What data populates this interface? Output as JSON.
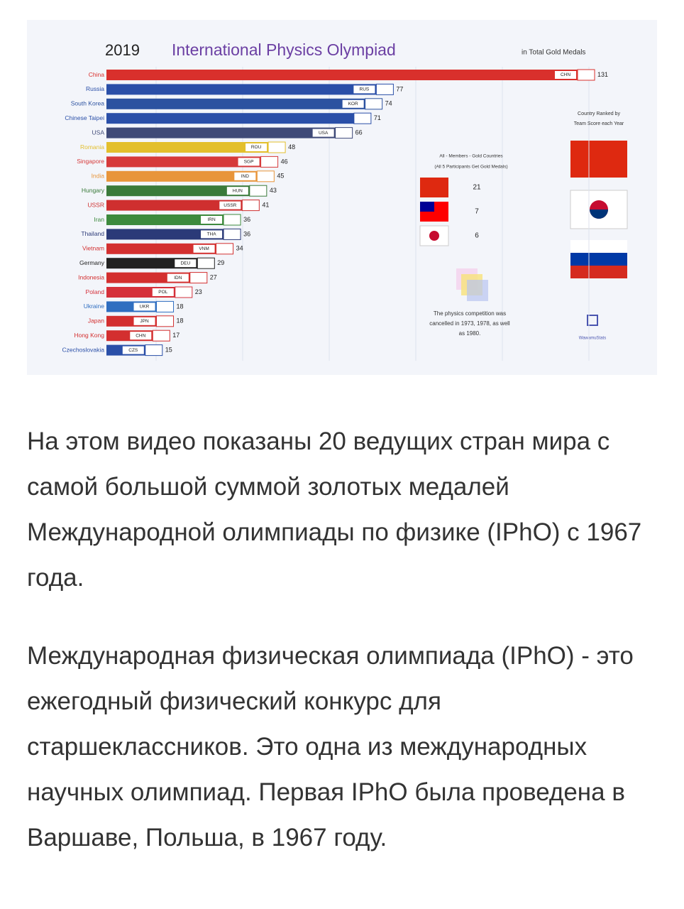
{
  "chart_data": {
    "type": "bar",
    "orientation": "horizontal",
    "year": "2019",
    "title": "International Physics Olympiad",
    "subtitle": "in Total Gold Medals",
    "categories": [
      "China",
      "Russia",
      "South Korea",
      "Chinese Taipei",
      "USA",
      "Romania",
      "Singapore",
      "India",
      "Hungary",
      "USSR",
      "Iran",
      "Thailand",
      "Vietnam",
      "Germany",
      "Indonesia",
      "Poland",
      "Ukraine",
      "Japan",
      "Hong Kong",
      "Czechoslovakia"
    ],
    "codes": [
      "CHN",
      "RUS",
      "KOR",
      null,
      "USA",
      "ROU",
      "SGP",
      "IND",
      "HUN",
      "USSR",
      "IRN",
      "THA",
      "VNM",
      "DEU",
      "IDN",
      "POL",
      "UKR",
      "JPN",
      "CHN",
      "CZS"
    ],
    "values": [
      131,
      77,
      74,
      71,
      66,
      48,
      46,
      45,
      43,
      41,
      36,
      36,
      34,
      29,
      27,
      23,
      18,
      18,
      17,
      15
    ],
    "colors": [
      "#d9302c",
      "#2a4fa8",
      "#2c52a0",
      "#2a4fa8",
      "#3f4a78",
      "#e3bf2c",
      "#d63a3a",
      "#e8953a",
      "#3a7a3a",
      "#cf2f2f",
      "#3d8a3d",
      "#2b3a78",
      "#d33030",
      "#222222",
      "#d32f2f",
      "#d5303a",
      "#2f6ec0",
      "#d32f2f",
      "#d32f2f",
      "#2a4fa8"
    ],
    "ranking_note": [
      "Country Ranked by",
      "Team Score each Year"
    ],
    "all_gold_note": [
      "All - Members - Gold Countries",
      "(All 5 Participants Get Gold Medals)"
    ],
    "all_gold_counts": [
      21,
      7,
      6
    ],
    "cancel_note": [
      "The physics competition was",
      "cancelled in 1973, 1978, as well",
      "as 1980."
    ],
    "brand": "WawamuStats"
  },
  "article": {
    "paragraphs": [
      "На этом видео показаны 20 ведущих стран мира с самой большой суммой золотых медалей Международной олимпиады по физике (IPhO) с 1967 года.",
      "Международная физическая олимпиада (IPhO) - это ежегодный физический конкурс для старшеклассников. Это одна из международных научных олимпиад. Первая IPhO была проведена в Варшаве, Польша, в 1967 году."
    ]
  }
}
